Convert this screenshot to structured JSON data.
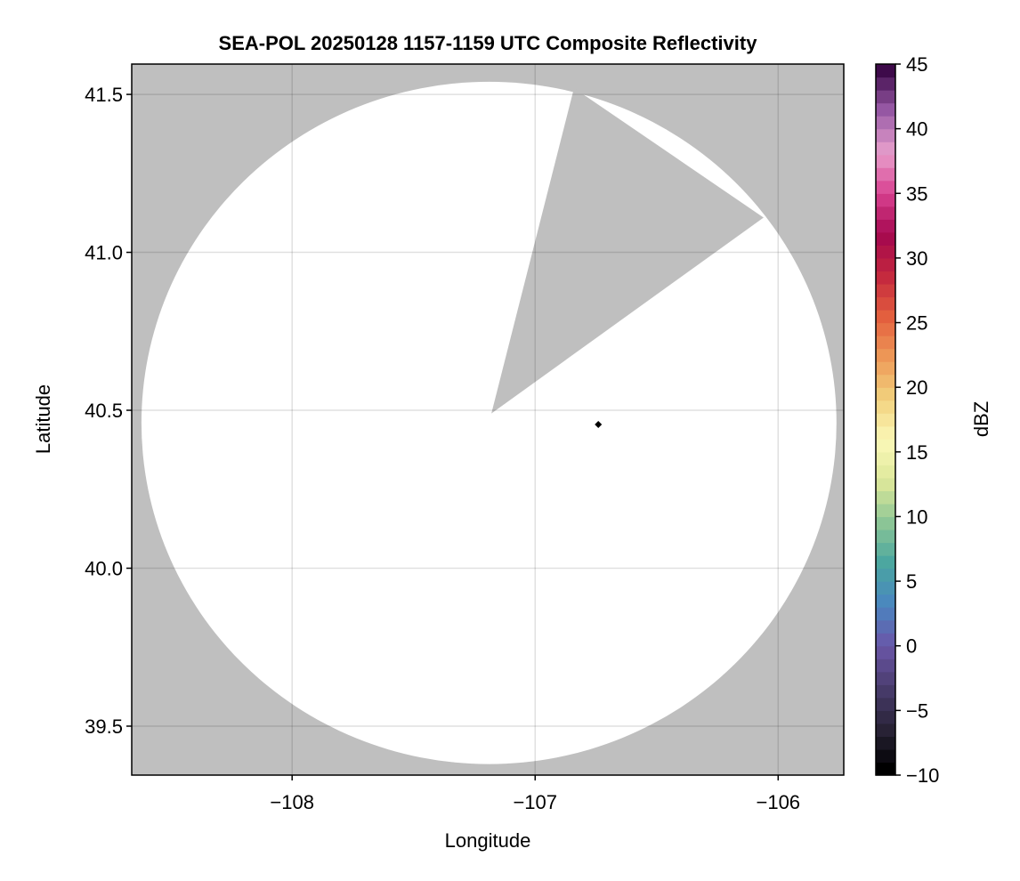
{
  "chart_data": {
    "type": "heatmap",
    "title": "SEA-POL 20250128 1157-1159 UTC Composite Reflectivity",
    "xlabel": "Longitude",
    "ylabel": "Latitude",
    "xlim": [
      -108.66,
      -105.73
    ],
    "ylim": [
      39.345,
      41.596
    ],
    "xticks": [
      -108,
      -107,
      -106
    ],
    "xtick_labels": [
      "−108",
      "−107",
      "−106"
    ],
    "yticks": [
      39.5,
      40.0,
      40.5,
      41.0,
      41.5
    ],
    "ytick_labels": [
      "39.5",
      "40.0",
      "40.5",
      "41.0",
      "41.5"
    ],
    "grid": true,
    "background_color": "#bfbfbf",
    "coverage_color": "#ffffff",
    "coverage": {
      "center_lon": -107.19,
      "center_lat": 40.46,
      "radius_lon": 1.43,
      "radius_lat": 1.08
    },
    "blocked_sector": {
      "apex": [
        -107.18,
        40.49
      ],
      "edge_points": [
        [
          -106.84,
          41.52
        ],
        [
          -106.06,
          41.11
        ]
      ]
    },
    "marker": {
      "lon": -106.74,
      "lat": 40.455,
      "shape": "diamond",
      "color": "#000000"
    },
    "reflectivity_values": "none shown (no echoes)",
    "colorbar": {
      "label": "dBZ",
      "range": [
        -10,
        45
      ],
      "ticks": [
        -10,
        -5,
        0,
        5,
        10,
        15,
        20,
        25,
        30,
        35,
        40,
        45
      ],
      "tick_labels": [
        "−10",
        "−5",
        "0",
        "5",
        "10",
        "15",
        "20",
        "25",
        "30",
        "35",
        "40",
        "45"
      ],
      "step": 1,
      "color_stops": [
        "#000000",
        "#2a2438",
        "#4a3d6e",
        "#6a56a8",
        "#4a86c0",
        "#4aa6a0",
        "#8cc696",
        "#dde89a",
        "#fbf8b8",
        "#f2d27e",
        "#ee9a58",
        "#e4603e",
        "#c4283e",
        "#a4084e",
        "#d84090",
        "#e8a0cc",
        "#9a5ca8",
        "#3e0a4a"
      ]
    }
  }
}
